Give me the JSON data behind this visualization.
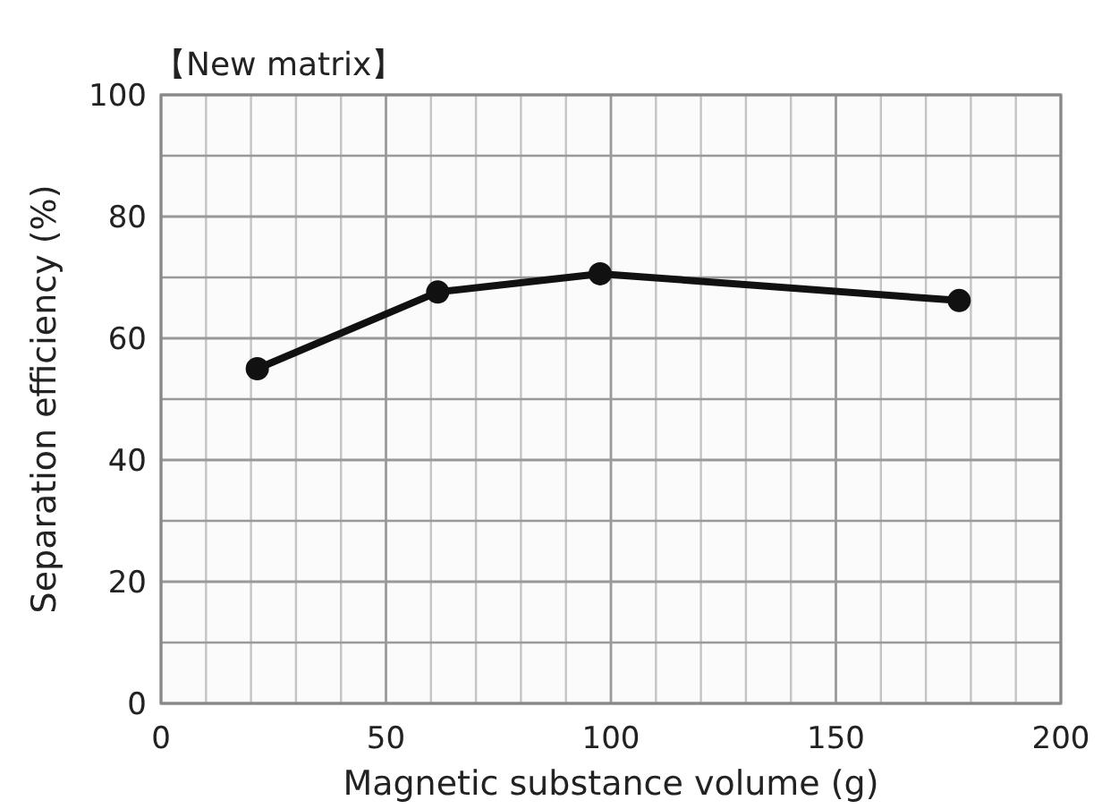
{
  "chart_data": {
    "type": "line",
    "title": "【New matrix】",
    "xlabel": "Magnetic substance volume (g)",
    "ylabel": "Separation efficiency (%)",
    "x": [
      21.4,
      61.5,
      97.6,
      177.4
    ],
    "values": [
      55,
      67.6,
      70.6,
      66.2
    ],
    "color": "#111111",
    "marker": "circle",
    "line_style": "solid",
    "grid": true,
    "xlim": [
      0,
      200
    ],
    "xticks": [
      0,
      50,
      100,
      150,
      200
    ],
    "ylim": [
      0,
      100
    ],
    "yticks": [
      0,
      20,
      40,
      60,
      80,
      100
    ]
  }
}
